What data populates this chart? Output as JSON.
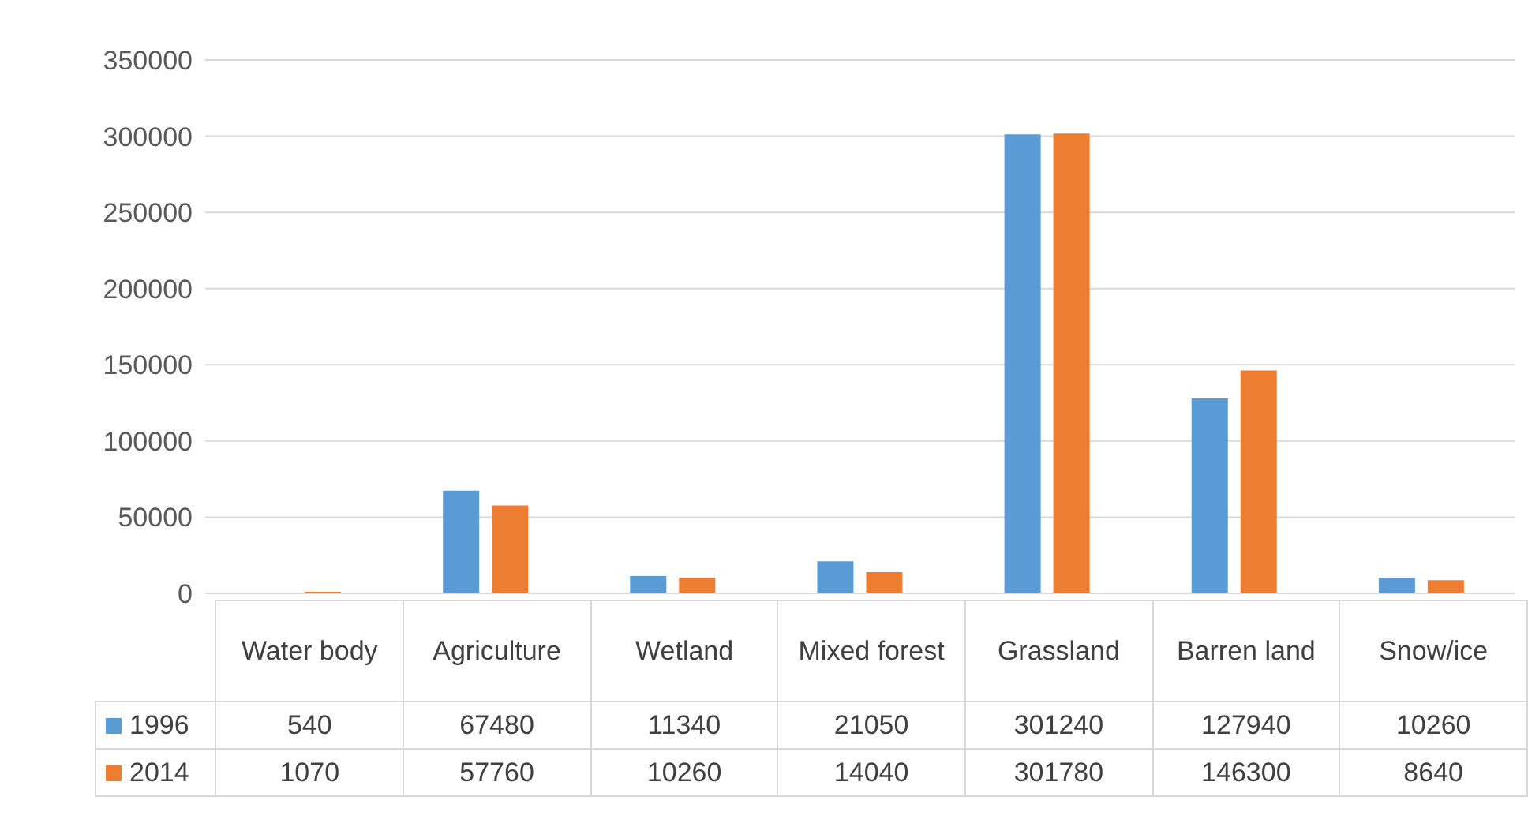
{
  "chart_data": {
    "type": "bar",
    "categories": [
      "Water body",
      "Agriculture",
      "Wetland",
      "Mixed forest",
      "Grassland",
      "Barren land",
      "Snow/ice"
    ],
    "series": [
      {
        "name": "1996",
        "color": "#5b9bd5",
        "values": [
          540,
          67480,
          11340,
          21050,
          301240,
          127940,
          10260
        ]
      },
      {
        "name": "2014",
        "color": "#ed7d31",
        "values": [
          1070,
          57760,
          10260,
          14040,
          301780,
          146300,
          8640
        ]
      }
    ],
    "ylim": [
      0,
      350000
    ],
    "yticks": [
      0,
      50000,
      100000,
      150000,
      200000,
      250000,
      300000,
      350000
    ],
    "grid": "y",
    "legend": "bottom",
    "data_labels": true
  }
}
